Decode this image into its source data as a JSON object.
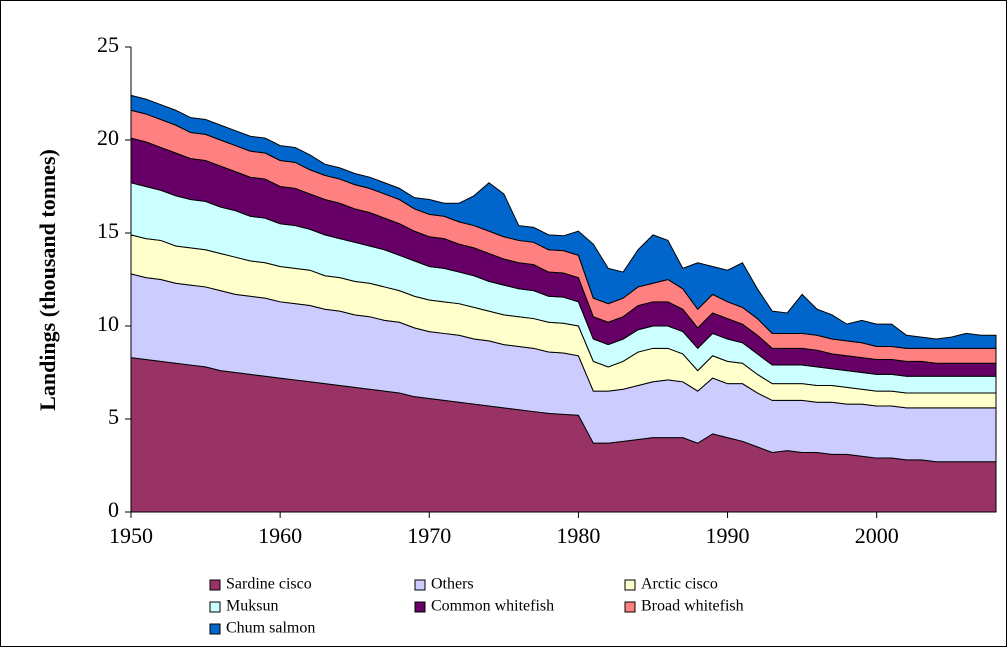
{
  "chart_data": {
    "type": "stacked-area",
    "y_label": "Landings (thousand tonnes)",
    "x": [
      1950,
      1951,
      1952,
      1953,
      1954,
      1955,
      1956,
      1957,
      1958,
      1959,
      1960,
      1961,
      1962,
      1963,
      1964,
      1965,
      1966,
      1967,
      1968,
      1969,
      1970,
      1971,
      1972,
      1973,
      1974,
      1975,
      1976,
      1977,
      1978,
      1979,
      1980,
      1981,
      1982,
      1983,
      1984,
      1985,
      1986,
      1987,
      1988,
      1989,
      1990,
      1991,
      1992,
      1993,
      1994,
      1995,
      1996,
      1997,
      1998,
      1999,
      2000,
      2001,
      2002,
      2003,
      2004,
      2005,
      2006,
      2007,
      2008
    ],
    "xlim": [
      1950,
      2008
    ],
    "xticks": [
      1950,
      1960,
      1970,
      1980,
      1990,
      2000
    ],
    "ylim": [
      0,
      25
    ],
    "yticks": [
      0,
      5,
      10,
      15,
      20,
      25
    ],
    "series": [
      {
        "name": "Sardine cisco",
        "color": "#993366",
        "values": [
          8.3,
          8.2,
          8.1,
          8.0,
          7.9,
          7.8,
          7.6,
          7.5,
          7.4,
          7.3,
          7.2,
          7.1,
          7.0,
          6.9,
          6.8,
          6.7,
          6.6,
          6.5,
          6.4,
          6.2,
          6.1,
          6.0,
          5.9,
          5.8,
          5.7,
          5.6,
          5.5,
          5.4,
          5.3,
          5.25,
          5.2,
          3.7,
          3.7,
          3.8,
          3.9,
          4.0,
          4.0,
          4.0,
          3.7,
          4.2,
          4.0,
          3.8,
          3.5,
          3.2,
          3.3,
          3.2,
          3.2,
          3.1,
          3.1,
          3.0,
          2.9,
          2.9,
          2.8,
          2.8,
          2.7,
          2.7,
          2.7,
          2.7,
          2.7
        ]
      },
      {
        "name": "Others",
        "color": "#ccccff",
        "values": [
          4.5,
          4.4,
          4.4,
          4.3,
          4.3,
          4.3,
          4.3,
          4.2,
          4.2,
          4.2,
          4.1,
          4.1,
          4.1,
          4.0,
          4.0,
          3.9,
          3.9,
          3.8,
          3.8,
          3.7,
          3.6,
          3.6,
          3.6,
          3.5,
          3.5,
          3.4,
          3.4,
          3.4,
          3.3,
          3.3,
          3.2,
          2.8,
          2.8,
          2.8,
          2.9,
          3.0,
          3.1,
          3.0,
          2.8,
          3.0,
          2.9,
          3.1,
          2.9,
          2.8,
          2.7,
          2.8,
          2.7,
          2.8,
          2.7,
          2.8,
          2.8,
          2.8,
          2.8,
          2.8,
          2.9,
          2.9,
          2.9,
          2.9,
          2.9
        ]
      },
      {
        "name": "Arctic cisco",
        "color": "#ffffcc",
        "values": [
          2.1,
          2.1,
          2.1,
          2.0,
          2.0,
          2.0,
          2.0,
          2.0,
          1.9,
          1.9,
          1.9,
          1.9,
          1.9,
          1.8,
          1.8,
          1.8,
          1.8,
          1.8,
          1.7,
          1.7,
          1.7,
          1.7,
          1.7,
          1.7,
          1.6,
          1.6,
          1.6,
          1.6,
          1.6,
          1.6,
          1.6,
          1.6,
          1.3,
          1.5,
          1.8,
          1.8,
          1.7,
          1.5,
          1.1,
          1.2,
          1.2,
          1.1,
          1.0,
          0.9,
          0.9,
          0.9,
          0.9,
          0.9,
          0.9,
          0.8,
          0.8,
          0.8,
          0.8,
          0.8,
          0.8,
          0.8,
          0.8,
          0.8,
          0.8
        ]
      },
      {
        "name": "Muksun",
        "color": "#ccffff",
        "values": [
          2.8,
          2.8,
          2.7,
          2.7,
          2.6,
          2.6,
          2.5,
          2.5,
          2.4,
          2.4,
          2.3,
          2.3,
          2.2,
          2.2,
          2.1,
          2.1,
          2.0,
          2.0,
          1.9,
          1.9,
          1.8,
          1.8,
          1.7,
          1.7,
          1.6,
          1.6,
          1.5,
          1.5,
          1.4,
          1.4,
          1.3,
          1.2,
          1.2,
          1.2,
          1.2,
          1.2,
          1.2,
          1.2,
          1.2,
          1.2,
          1.2,
          1.1,
          1.1,
          1.0,
          1.0,
          1.0,
          1.0,
          0.9,
          0.9,
          0.9,
          0.9,
          0.9,
          0.9,
          0.9,
          0.9,
          0.9,
          0.9,
          0.9,
          0.9
        ]
      },
      {
        "name": "Common whitefish",
        "color": "#660066",
        "values": [
          2.4,
          2.4,
          2.3,
          2.3,
          2.2,
          2.2,
          2.2,
          2.1,
          2.1,
          2.1,
          2.0,
          2.0,
          1.9,
          1.9,
          1.9,
          1.8,
          1.8,
          1.7,
          1.7,
          1.6,
          1.6,
          1.6,
          1.5,
          1.5,
          1.5,
          1.4,
          1.4,
          1.4,
          1.3,
          1.3,
          1.3,
          1.2,
          1.2,
          1.2,
          1.3,
          1.3,
          1.3,
          1.2,
          1.1,
          1.1,
          1.1,
          1.0,
          1.0,
          0.9,
          0.9,
          0.9,
          0.9,
          0.8,
          0.8,
          0.8,
          0.8,
          0.8,
          0.8,
          0.8,
          0.7,
          0.7,
          0.7,
          0.7,
          0.7
        ]
      },
      {
        "name": "Broad whitefish",
        "color": "#ff8080",
        "values": [
          1.5,
          1.5,
          1.5,
          1.5,
          1.4,
          1.4,
          1.4,
          1.4,
          1.4,
          1.4,
          1.4,
          1.4,
          1.3,
          1.3,
          1.3,
          1.3,
          1.3,
          1.3,
          1.3,
          1.2,
          1.2,
          1.2,
          1.2,
          1.2,
          1.2,
          1.2,
          1.2,
          1.2,
          1.2,
          1.2,
          1.2,
          1.0,
          1.0,
          1.0,
          1.0,
          1.0,
          1.2,
          1.1,
          1.0,
          1.0,
          0.9,
          0.9,
          0.9,
          0.8,
          0.8,
          0.8,
          0.8,
          0.8,
          0.8,
          0.8,
          0.7,
          0.7,
          0.7,
          0.7,
          0.8,
          0.8,
          0.8,
          0.8,
          0.8
        ]
      },
      {
        "name": "Chum salmon",
        "color": "#0066cc",
        "values": [
          0.8,
          0.8,
          0.8,
          0.8,
          0.8,
          0.8,
          0.8,
          0.8,
          0.8,
          0.8,
          0.8,
          0.8,
          0.8,
          0.6,
          0.6,
          0.6,
          0.6,
          0.6,
          0.6,
          0.6,
          0.8,
          0.7,
          1.0,
          1.6,
          2.6,
          2.3,
          0.8,
          0.8,
          0.8,
          0.8,
          1.3,
          2.9,
          1.9,
          1.4,
          2.0,
          2.6,
          2.1,
          1.1,
          2.5,
          1.5,
          1.7,
          2.4,
          1.6,
          1.2,
          1.1,
          2.1,
          1.4,
          1.3,
          0.9,
          1.2,
          1.2,
          1.2,
          0.7,
          0.6,
          0.5,
          0.6,
          0.8,
          0.7,
          0.7
        ]
      }
    ]
  }
}
